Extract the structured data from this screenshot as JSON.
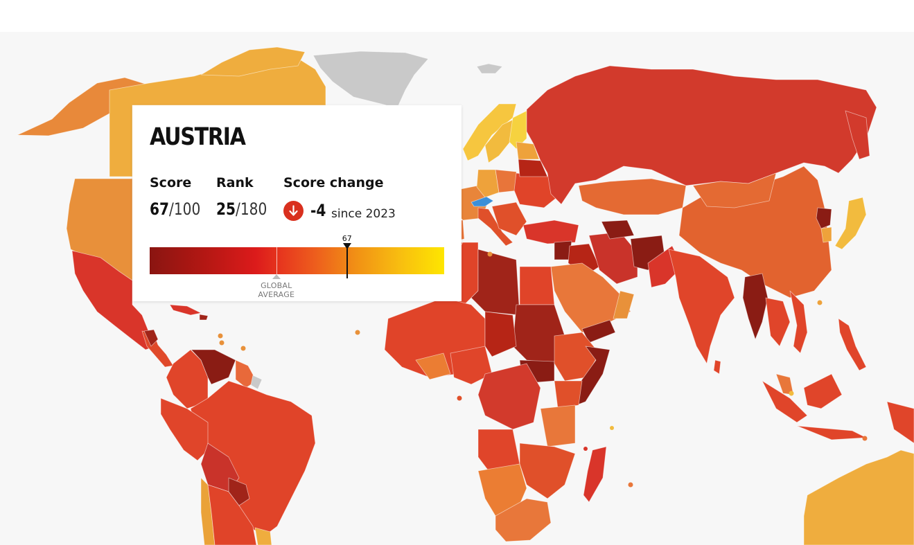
{
  "country": {
    "name": "AUSTRIA",
    "score_label": "Score",
    "score": "67",
    "score_max": "/100",
    "rank_label": "Rank",
    "rank": "25",
    "rank_max": "/180",
    "change_label": "Score change",
    "change_direction": "down",
    "change_icon": "arrow-down-icon",
    "change_value": "-4",
    "change_since": "since 2023",
    "score_scale": {
      "min": 0,
      "max": 100,
      "value": 67,
      "global_average": 43
    },
    "marker_label": "67",
    "global_average_label": "GLOBAL AVERAGE"
  },
  "colors": {
    "selected_country": "#3b8fd8",
    "no_data": "#c9c9c9",
    "change_badge": "#d9301e",
    "scale": [
      "#8a1511",
      "#b21713",
      "#dc1b1b",
      "#e7381e",
      "#ed5d1d",
      "#f19015",
      "#f8be10",
      "#fee600"
    ]
  }
}
